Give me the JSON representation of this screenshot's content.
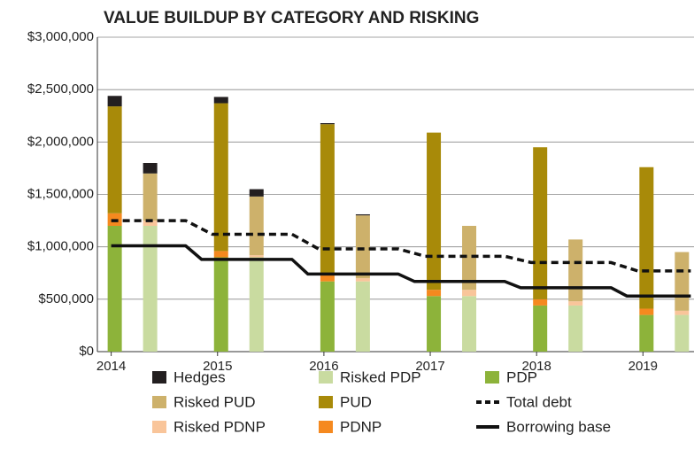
{
  "chart_data": {
    "type": "bar",
    "title": "VALUE BUILDUP BY CATEGORY AND RISKING",
    "x": [
      2014,
      2015,
      2016,
      2017,
      2018,
      2019
    ],
    "xlim": [
      2013.87,
      2019.48
    ],
    "xticks": [
      2014,
      2015,
      2016,
      2017,
      2018,
      2019
    ],
    "ylim": [
      0,
      3000000
    ],
    "yticks": [
      {
        "value": 0,
        "label": "$0"
      },
      {
        "value": 500000,
        "label": "$500,000"
      },
      {
        "value": 1000000,
        "label": "$1,000,000"
      },
      {
        "value": 1500000,
        "label": "$1,500,000"
      },
      {
        "value": 2000000,
        "label": "$2,000,000"
      },
      {
        "value": 2500000,
        "label": "$2,500,000"
      },
      {
        "value": 3000000,
        "label": "$3,000,000"
      }
    ],
    "grid": true,
    "series": [
      {
        "name": "PDP",
        "color": "#8db33a",
        "values": [
          1200000,
          900000,
          670000,
          530000,
          440000,
          350000
        ]
      },
      {
        "name": "PDNP",
        "color": "#f5891f",
        "values": [
          120000,
          60000,
          60000,
          60000,
          60000,
          60000
        ]
      },
      {
        "name": "PUD",
        "color": "#a88a09",
        "values": [
          1020000,
          1410000,
          1440000,
          1500000,
          1450000,
          1350000
        ]
      },
      {
        "name": "Hedges",
        "color": "#231f20",
        "values": [
          100000,
          60000,
          10000,
          0,
          0,
          0
        ],
        "risked_values": [
          100000,
          70000,
          10000,
          0,
          0,
          0
        ]
      },
      {
        "name": "Risked PDP",
        "color": "#c9dba0",
        "values": [
          1200000,
          900000,
          670000,
          530000,
          440000,
          350000
        ],
        "risked": true
      },
      {
        "name": "Risked PDNP",
        "color": "#f9c59a",
        "values": [
          50000,
          20000,
          30000,
          60000,
          40000,
          40000
        ],
        "risked": true
      },
      {
        "name": "Risked PUD",
        "color": "#cdb16b",
        "values": [
          450000,
          560000,
          600000,
          610000,
          590000,
          560000
        ],
        "risked": true
      },
      {
        "name": "Total debt",
        "type": "line",
        "dashed": true,
        "color": "#111111",
        "x": [
          2014,
          2014.7,
          2014.95,
          2015.7,
          2015.95,
          2016.7,
          2016.95,
          2017.7,
          2017.95,
          2018.7,
          2018.95,
          2019.45
        ],
        "values": [
          1250000,
          1250000,
          1120000,
          1120000,
          980000,
          980000,
          910000,
          910000,
          850000,
          850000,
          770000,
          770000
        ]
      },
      {
        "name": "Borrowing base",
        "type": "line",
        "color": "#111111",
        "x": [
          2014,
          2014.7,
          2014.85,
          2015.7,
          2015.85,
          2016.7,
          2016.85,
          2017.7,
          2017.85,
          2018.7,
          2018.85,
          2019.45
        ],
        "values": [
          1010000,
          1010000,
          880000,
          880000,
          740000,
          740000,
          670000,
          670000,
          610000,
          610000,
          530000,
          530000
        ]
      }
    ]
  }
}
